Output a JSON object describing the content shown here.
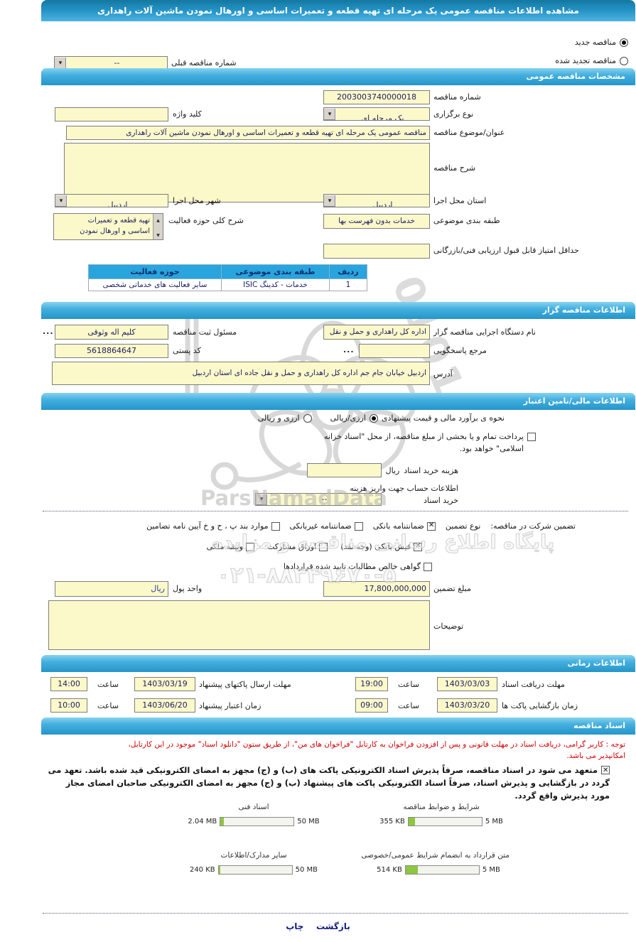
{
  "page_title": "مشاهده اطلاعات مناقصه عمومی یک مرحله ای تهیه قطعه و تعمیرات اساسی و اورهال نمودن ماشین آلات راهداری",
  "top": {
    "radio_new": "مناقصه جدید",
    "radio_renewed": "مناقصه تجدید شده",
    "prev_label": "شماره مناقصه قبلی",
    "prev_value": "--"
  },
  "specs": {
    "header": "مشخصات مناقصه عمومی",
    "tender_no_label": "شماره مناقصه",
    "tender_no": "2003003740000018",
    "holding_label": "نوع برگزاری",
    "holding_value": "یک مرحله ای",
    "keyword_label": "کلید واژه",
    "keyword_value": "",
    "subject_label": "عنوان/موضوع مناقصه",
    "subject_value": "مناقصه عمومی یک مرحله ای تهیه قطعه و تعمیرات اساسی و اورهال نمودن ماشین آلات راهداری",
    "desc_label": "شرح مناقصه",
    "desc_value": "",
    "province_label": "استان محل اجرا",
    "province_value": "اردبیل",
    "city_label": "شهر محل اجرا",
    "city_value": "اردبیل",
    "class_label": "طبقه بندی موضوعی",
    "class_value": "خدمات بدون فهرست بها",
    "activity_label": "شرح کلی حوزه فعالیت",
    "activity_line1": "تهیه قطعه و تعمیرات",
    "activity_line2": "اساسی و اورهال نمودن",
    "minscore_label": "حداقل امتیاز قابل قبول ارزیابی فنی/بازرگانی",
    "minscore_value": "",
    "table": {
      "headers": [
        "ردیف",
        "طبقه بندی موضوعی",
        "حوزه فعالیت"
      ],
      "rows": [
        [
          "1",
          "خدمات - کدینگ ISIC",
          "سایر فعالیت های خدماتی شخصی"
        ]
      ]
    }
  },
  "agency": {
    "header": "اطلاعات مناقصه گزار",
    "org_label": "نام دستگاه اجرایی مناقصه گزار",
    "org_value": "اداره کل راهداری و حمل و نقل",
    "registrar_label": "مسئول ثبت مناقصه",
    "registrar_value": "کلیم اله وثوقی",
    "more_dots": "...",
    "ref_label": "مرجع پاسخگویی",
    "ref_value": "",
    "postal_label": "کد پستی",
    "postal_value": "5618864647",
    "address_label": "آدرس",
    "address_value": "اردبیل خیابان جام جم اداره کل راهداری و حمل و نقل جاده ای استان اردبیل"
  },
  "financial": {
    "header": "اطلاعات مالی/تامین اعتبار",
    "estimate_label": "نحوه ی برآورد مالی و قیمت پیشنهادی",
    "estimate_opt1": "ارزی/ریالی",
    "estimate_opt2": "ارزی و ریالی",
    "treasury_text": "پرداخت تمام و یا بخشی از مبلغ مناقصه، از محل \"اسناد خزانه اسلامی\" خواهد بود.",
    "doc_cost_label": "هزینه خرید اسناد",
    "doc_cost_value": "",
    "rial_suffix": "ریال",
    "account_label1": "اطلاعات حساب جهت واریز هزینه",
    "account_label2": "خرید اسناد",
    "account_value": "--",
    "guarantee_title": "تضمین شرکت در مناقصه:",
    "guarantee_type_label": "نوع تضمین",
    "cb_bank": "ضمانتنامه بانکی",
    "cb_nonbank": "ضمانتنامه غیربانکی",
    "cb_clauses": "موارد بند پ ، ح و خ آیین نامه تضامین",
    "cb_deposit": "فیش بانکی (وجه نقد)",
    "cb_bonds": "اوراق مشارکت",
    "cb_estate": "وثیقه ملکی",
    "cb_claims": "گواهی خالص مطالبات تایید شده قراردادها",
    "amount_label": "مبلغ تضمین",
    "amount_value": "17,800,000,000",
    "currency_label": "واحد پول",
    "currency_value": "ریال",
    "notes_label": "توضیحات",
    "notes_value": ""
  },
  "timing": {
    "header": "اطلاعات زمانی",
    "hour_label": "ساعت",
    "receive_label": "مهلت دریافت اسناد",
    "receive_date": "1403/03/03",
    "receive_time": "19:00",
    "send_label": "مهلت ارسال پاکتهای پیشنهاد",
    "send_date": "1403/03/19",
    "send_time": "14:00",
    "open_label": "زمان بازگشایی پاکت ها",
    "open_date": "1403/03/20",
    "open_time": "09:00",
    "valid_label": "زمان اعتبار پیشنهاد",
    "valid_date": "1403/06/20",
    "valid_time": "10:00"
  },
  "documents": {
    "header": "اسناد مناقصه",
    "note_line1": "توجه : کاربر گرامی، دریافت اسناد در مهلت قانونی و پس از افزودن فراخوان به کارتابل \"فراخوان های من\"، از طریق ستون \"دانلود اسناد\" موجود در این کارتابل،",
    "note_line2": "امکانپذیر می باشد.",
    "commit_text": "متعهد می شود در اسناد مناقصه، صرفاً پذیرش اسناد الکترونیکی پاکت های (ب) و (ج) مجهز به امضای الکترونیکی قید شده باشد. تعهد می گردد در بازگشایی و پذیرش اسناد، صرفاً اسناد الکترونیکی پاکت های پیشنهاد (ب) و (ج) مجهز به امضای الکترونیکی صاحبان امضای مجاز مورد پذیرش واقع گردد.",
    "uploads": [
      {
        "label": "شرایط و ضوابط مناقصه",
        "size": "355 KB",
        "max": "5 MB",
        "pct": 9
      },
      {
        "label": "اسناد فنی",
        "size": "2.04 MB",
        "max": "50 MB",
        "pct": 5
      },
      {
        "label": "متن قرارداد به انضمام شرایط عمومی/خصوصی",
        "size": "514 KB",
        "max": "5 MB",
        "pct": 17
      },
      {
        "label": "سایر مدارک/اطلاعات",
        "size": "240 KB",
        "max": "50 MB",
        "pct": 2
      }
    ]
  },
  "footer": {
    "back_label": "بازگشت",
    "print_label": "چاپ"
  },
  "watermark": {
    "brand": "ParsNamadData",
    "slogan": "پایگاه اطلاع رسانی مناقصه و مزایده",
    "phone": "۰۲۱-۸۸۳۴۹۶۷۰-۵",
    "ghost_digits": "0101"
  },
  "colors": {
    "bar_blue": "#2d9fd3",
    "field_yellow": "#fbf9c9",
    "fill_green": "#8dc63f",
    "note_red": "#d40000",
    "table_header_blue": "#2aa4dc"
  }
}
